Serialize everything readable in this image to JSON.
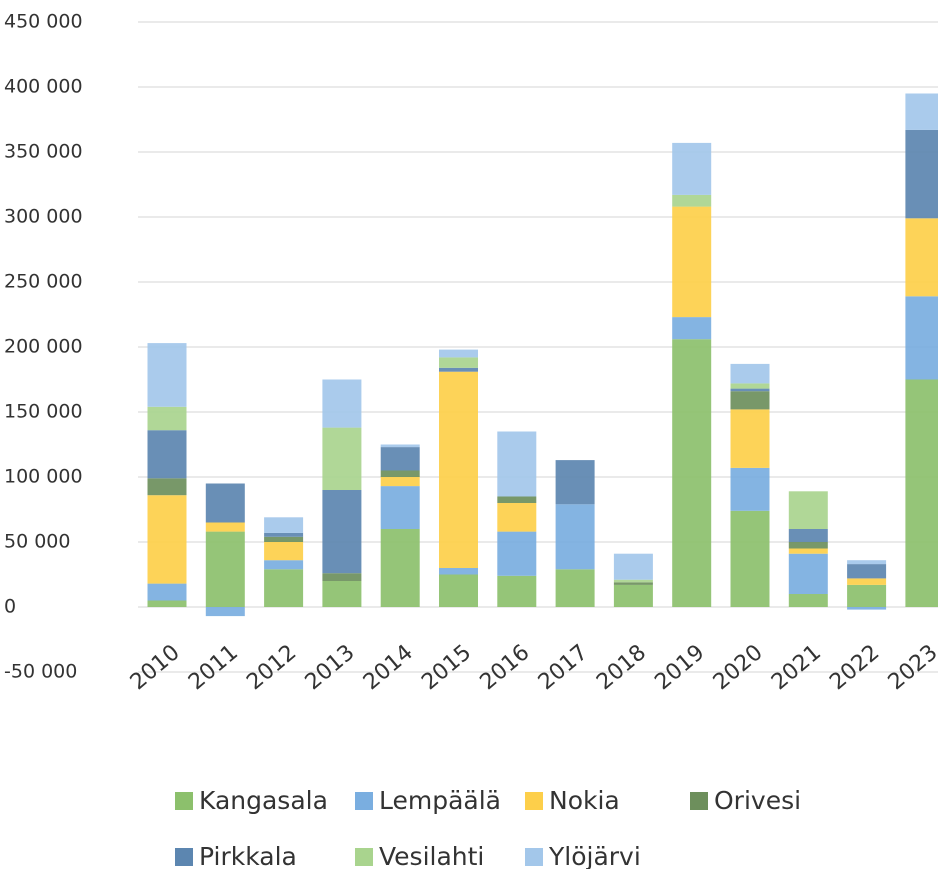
{
  "chart_data": {
    "type": "stacked_bar",
    "categories": [
      "2010",
      "2011",
      "2012",
      "2013",
      "2014",
      "2015",
      "2016",
      "2017",
      "2018",
      "2019",
      "2020",
      "2021",
      "2022",
      "2023"
    ],
    "series": [
      {
        "name": "Kangasala",
        "color": "#8cc06c",
        "values": [
          5000,
          58000,
          29000,
          20000,
          60000,
          25000,
          24000,
          29000,
          17000,
          206000,
          74000,
          10000,
          17000,
          175000
        ]
      },
      {
        "name": "Lempäälä",
        "color": "#7aaee0",
        "values": [
          13000,
          -7000,
          7000,
          0,
          33000,
          5000,
          34000,
          50000,
          0,
          17000,
          33000,
          31000,
          -2000,
          64000
        ]
      },
      {
        "name": "Nokia",
        "color": "#fdcf4a",
        "values": [
          68000,
          7000,
          14000,
          0,
          7000,
          151000,
          22000,
          0,
          0,
          85000,
          45000,
          4000,
          5000,
          60000
        ]
      },
      {
        "name": "Orivesi",
        "color": "#6d8f5c",
        "values": [
          13000,
          0,
          4000,
          6000,
          5000,
          0,
          5000,
          0,
          2000,
          0,
          14000,
          5000,
          0,
          0
        ]
      },
      {
        "name": "Pirkkala",
        "color": "#5c86b0",
        "values": [
          37000,
          30000,
          3000,
          64000,
          18000,
          3000,
          0,
          34000,
          0,
          0,
          2000,
          10000,
          11000,
          68000
        ]
      },
      {
        "name": "Vesilahti",
        "color": "#a9d48e",
        "values": [
          18000,
          0,
          0,
          48000,
          0,
          8000,
          0,
          0,
          2000,
          9000,
          4000,
          29000,
          0,
          0
        ]
      },
      {
        "name": "Ylöjärvi",
        "color": "#a3c7ea",
        "values": [
          49000,
          0,
          12000,
          37000,
          2000,
          6000,
          50000,
          0,
          20000,
          40000,
          15000,
          0,
          3000,
          28000
        ]
      }
    ],
    "ylim": [
      -50000,
      450000
    ],
    "yticks": [
      {
        "value": -50000,
        "label": "-50 000"
      },
      0,
      {
        "value": 50000,
        "label": "50 000"
      },
      {
        "value": 100000,
        "label": "100 000"
      },
      {
        "value": 150000,
        "label": "150 000"
      },
      {
        "value": 200000,
        "label": "200 000"
      },
      {
        "value": 250000,
        "label": "250 000"
      },
      {
        "value": 300000,
        "label": "300 000"
      },
      {
        "value": 350000,
        "label": "350 000"
      },
      {
        "value": 400000,
        "label": "400 000"
      },
      {
        "value": 450000,
        "label": "450 000"
      }
    ],
    "grid": true,
    "legend": "bottom"
  }
}
